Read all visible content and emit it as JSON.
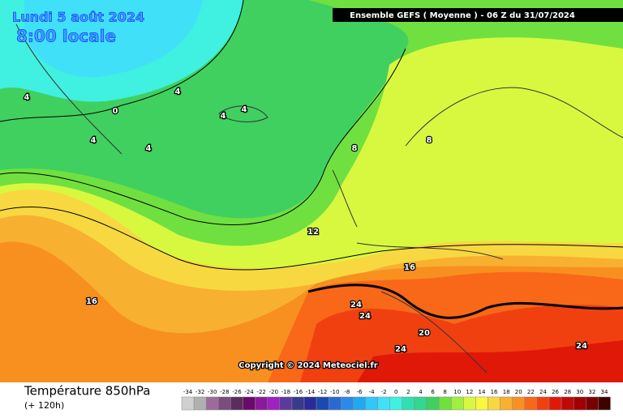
{
  "header": {
    "date": "Lundi 5 août 2024",
    "time": "8:00 locale",
    "model": "Ensemble GEFS  ( Moyenne )  -  06 Z du 31/07/2024"
  },
  "copyright": "Copyright © 2024 Meteociel.fr",
  "footer": {
    "title": "Température 850hPa",
    "lead": "(+ 120h)"
  },
  "contour_labels": [
    4,
    0,
    4,
    4,
    4,
    4,
    4,
    8,
    8,
    12,
    16,
    16,
    24,
    24,
    20,
    24,
    24
  ],
  "legend": {
    "levels": [
      -34,
      -32,
      -30,
      -28,
      -26,
      -24,
      -22,
      -20,
      -18,
      -16,
      -14,
      -12,
      -10,
      -8,
      -6,
      -4,
      -2,
      0,
      2,
      4,
      6,
      8,
      10,
      12,
      14,
      16,
      18,
      20,
      22,
      24,
      26,
      28,
      30,
      32,
      34
    ],
    "colors": [
      "#d0d0d0",
      "#b0b0b0",
      "#9c6b9c",
      "#7c4c7c",
      "#5c2c5c",
      "#6a0a6a",
      "#8a1a9a",
      "#a020c0",
      "#5a3a9a",
      "#3a3a8a",
      "#2a2a9a",
      "#1a4ab0",
      "#2a6ad0",
      "#2a8ae8",
      "#20a8f0",
      "#30c8f8",
      "#40e0f8",
      "#40f0e0",
      "#30e0b0",
      "#30d890",
      "#40d060",
      "#70e040",
      "#a0f040",
      "#d8f840",
      "#f8f840",
      "#f8d840",
      "#f8b030",
      "#f89020",
      "#f86818",
      "#f04010",
      "#e01808",
      "#c00808",
      "#a00000",
      "#780000",
      "#400000"
    ]
  }
}
